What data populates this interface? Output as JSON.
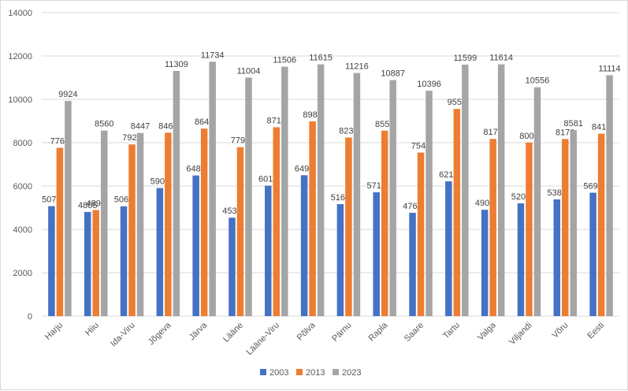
{
  "chart_data": {
    "type": "bar",
    "title": "",
    "xlabel": "",
    "ylabel": "",
    "ylim": [
      0,
      14000
    ],
    "yticks": [
      0,
      2000,
      4000,
      6000,
      8000,
      10000,
      12000,
      14000
    ],
    "grid": true,
    "legend_position": "bottom",
    "categories": [
      "Harju",
      "Hiiu",
      "Ida-Viru",
      "Jõgeva",
      "Järva",
      "Lääne",
      "Lääne-Viru",
      "Põlva",
      "Pärnu",
      "Rapla",
      "Saare",
      "Tartu",
      "Valga",
      "Viljandi",
      "Võru",
      "Eesti"
    ],
    "series": [
      {
        "name": "2003",
        "color": "#4472C4",
        "values": [
          5073,
          4805,
          5065,
          5908,
          6489,
          4538,
          6017,
          6497,
          5164,
          5713,
          4768,
          6216,
          4904,
          5204,
          5384,
          5693
        ]
      },
      {
        "name": "2013",
        "color": "#ED7D31",
        "values": [
          7764,
          4893,
          7920,
          8461,
          8648,
          7792,
          8712,
          8985,
          8238,
          8553,
          7542,
          9558,
          8175,
          8005,
          8170,
          8416
        ]
      },
      {
        "name": "2023",
        "color": "#A5A5A5",
        "values": [
          9924,
          8560,
          8447,
          11309,
          11734,
          11004,
          11506,
          11615,
          11216,
          10887,
          10396,
          11599,
          11614,
          10556,
          8581,
          11114
        ]
      }
    ]
  }
}
